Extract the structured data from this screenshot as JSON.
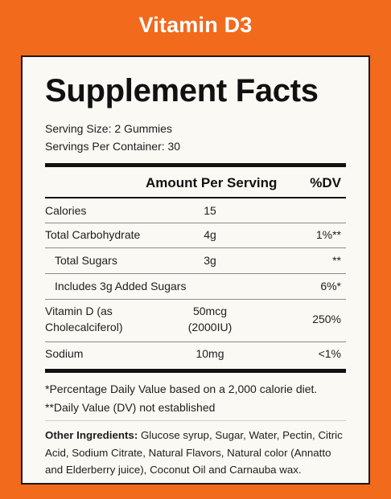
{
  "header": {
    "title": "Vitamin D3"
  },
  "label": {
    "title": "Supplement Facts",
    "serving_size": "Serving Size: 2 Gummies",
    "servings_per_container": "Servings Per Container: 30",
    "col_amount": "Amount Per Serving",
    "col_dv": "%DV",
    "rows": [
      {
        "name": "Calories",
        "amount": "15",
        "dv": ""
      },
      {
        "name": "Total Carbohydrate",
        "amount": "4g",
        "dv": "1%**"
      },
      {
        "name": "Total Sugars",
        "amount": "3g",
        "dv": "**"
      },
      {
        "name": "Includes 3g Added Sugars",
        "amount": "",
        "dv": "6%*"
      },
      {
        "name_line1": "Vitamin D (as",
        "name_line2": "Cholecalciferol)",
        "amount_line1": "50mcg",
        "amount_line2": "(2000IU)",
        "dv": "250%"
      },
      {
        "name": "Sodium",
        "amount": "10mg",
        "dv": "<1%"
      }
    ],
    "footnote_1": "*Percentage Daily Value based on a 2,000 calorie diet.",
    "footnote_2": "**Daily Value (DV) not established",
    "ingredients_label": "Other Ingredients:",
    "ingredients_text": " Glucose syrup, Sugar, Water, Pectin, Citric Acid, Sodium Citrate, Natural Flavors, Natural color (Annatto and Elderberry juice), Coconut Oil and Carnauba wax."
  },
  "colors": {
    "background": "#f26a1b",
    "panel": "#fbf9f4",
    "text": "#111111"
  }
}
